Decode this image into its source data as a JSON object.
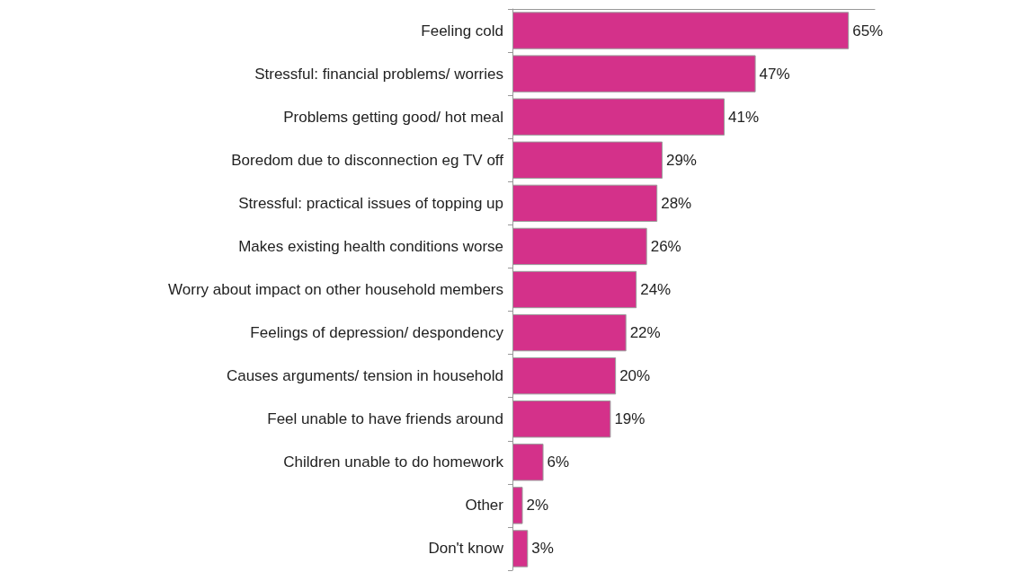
{
  "chart_data": {
    "type": "bar",
    "orientation": "horizontal",
    "categories": [
      "Feeling cold",
      "Stressful: financial problems/ worries",
      "Problems getting good/ hot meal",
      "Boredom due to disconnection eg TV off",
      "Stressful: practical issues of topping up",
      "Makes existing health conditions worse",
      "Worry about impact on other household members",
      "Feelings of depression/ despondency",
      "Causes arguments/ tension in household",
      "Feel unable to have friends around",
      "Children unable to do homework",
      "Other",
      "Don't know"
    ],
    "values": [
      65,
      47,
      41,
      29,
      28,
      26,
      24,
      22,
      20,
      19,
      6,
      2,
      3
    ],
    "value_labels": [
      "65%",
      "47%",
      "41%",
      "29%",
      "28%",
      "26%",
      "24%",
      "22%",
      "20%",
      "19%",
      "6%",
      "2%",
      "3%"
    ],
    "color": "#d4318a",
    "grid": false
  }
}
